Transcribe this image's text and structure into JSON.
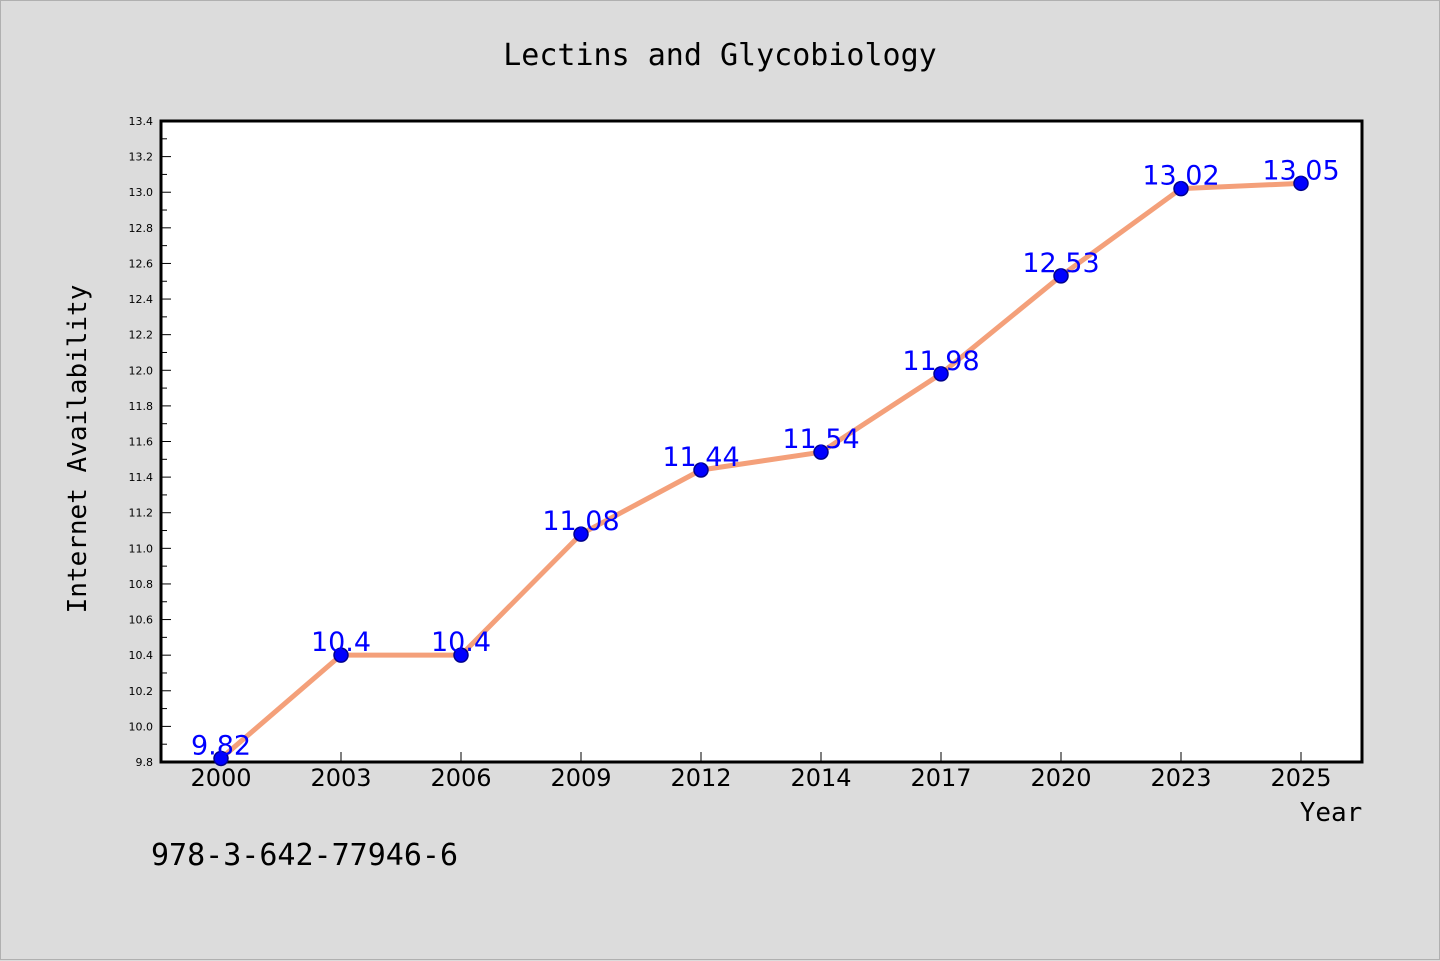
{
  "chart_data": {
    "type": "line",
    "title": "Lectins and Glycobiology",
    "xlabel": "Year",
    "ylabel": "Internet Availability",
    "categories": [
      "2000",
      "2003",
      "2006",
      "2009",
      "2012",
      "2014",
      "2017",
      "2020",
      "2023",
      "2025"
    ],
    "series": [
      {
        "values": [
          9.82,
          10.4,
          10.4,
          11.08,
          11.44,
          11.54,
          11.98,
          12.53,
          13.02,
          13.05
        ]
      }
    ],
    "data_labels": [
      "9.82",
      "10.4",
      "10.4",
      "11.08",
      "11.44",
      "11.54",
      "11.98",
      "12.53",
      "13.02",
      "13.05"
    ],
    "ylim": [
      9.8,
      13.4
    ],
    "y_ticks": [
      "9.8",
      "10.0",
      "10.2",
      "10.4",
      "10.6",
      "10.8",
      "11.0",
      "11.2",
      "11.4",
      "11.6",
      "11.8",
      "12.0",
      "12.2",
      "12.4",
      "12.6",
      "12.8",
      "13.0",
      "13.2",
      "13.4"
    ],
    "grid": false,
    "legend": "none",
    "colors": {
      "line": "#f4a07a",
      "marker": "#0000ff",
      "marker_edge": "#00008b",
      "data_label": "#0000ff",
      "plot_background": "#ffffff",
      "figure_background": "#dcdcdc"
    }
  },
  "footer_text": "978-3-642-77946-6"
}
